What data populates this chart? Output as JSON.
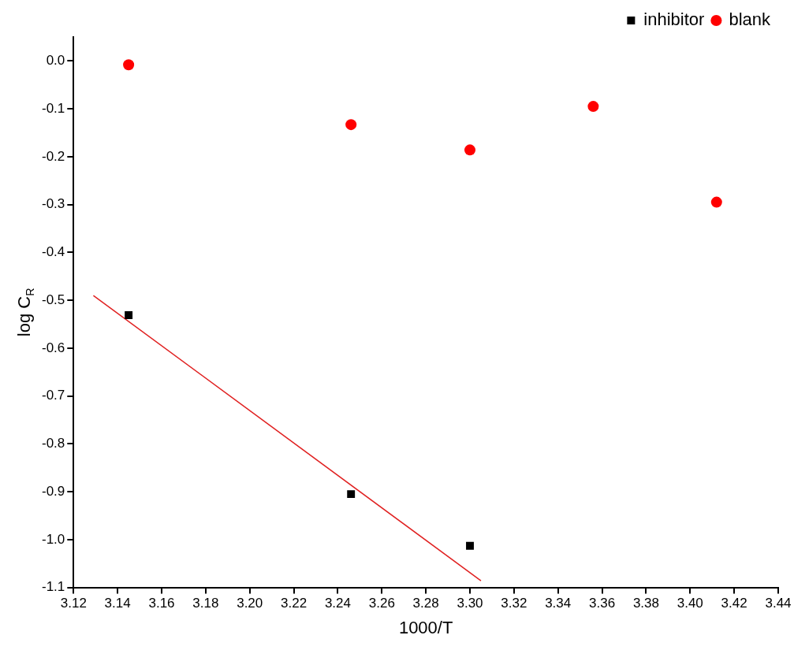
{
  "chart_data": {
    "type": "scatter",
    "xlabel": "1000/T",
    "ylabel": "log C$_{R}$",
    "xlim": [
      3.12,
      3.44
    ],
    "ylim": [
      -1.1,
      0.05
    ],
    "xticks": [
      {
        "value": 3.12,
        "label": "3.12"
      },
      {
        "value": 3.14,
        "label": "3.14"
      },
      {
        "value": 3.16,
        "label": "3.16"
      },
      {
        "value": 3.18,
        "label": "3.18"
      },
      {
        "value": 3.2,
        "label": "3.20"
      },
      {
        "value": 3.22,
        "label": "3.22"
      },
      {
        "value": 3.24,
        "label": "3.24"
      },
      {
        "value": 3.26,
        "label": "3.26"
      },
      {
        "value": 3.28,
        "label": "3.28"
      },
      {
        "value": 3.3,
        "label": "3.30"
      },
      {
        "value": 3.32,
        "label": "3.32"
      },
      {
        "value": 3.34,
        "label": "3.34"
      },
      {
        "value": 3.36,
        "label": "3.36"
      },
      {
        "value": 3.38,
        "label": "3.38"
      },
      {
        "value": 3.4,
        "label": "3.40"
      },
      {
        "value": 3.42,
        "label": "3.42"
      },
      {
        "value": 3.44,
        "label": "3.44"
      }
    ],
    "yticks": [
      {
        "value": 0,
        "label": "0.0"
      },
      {
        "value": -0.1,
        "label": "-0.1"
      },
      {
        "value": -0.2,
        "label": "-0.2"
      },
      {
        "value": -0.3,
        "label": "-0.3"
      },
      {
        "value": -0.4,
        "label": "-0.4"
      },
      {
        "value": -0.5,
        "label": "-0.5"
      },
      {
        "value": -0.6,
        "label": "-0.6"
      },
      {
        "value": -0.7,
        "label": "-0.7"
      },
      {
        "value": -0.8,
        "label": "-0.8"
      },
      {
        "value": -0.9,
        "label": "-0.9"
      },
      {
        "value": -1.0,
        "label": "-1.0"
      },
      {
        "value": -1.1,
        "label": "-1.1"
      }
    ],
    "grid": false,
    "legend": "top right",
    "series": [
      {
        "name": "inhibitor",
        "color": "#000000",
        "marker": "square",
        "x": [
          3.145,
          3.246,
          3.3
        ],
        "values": [
          -0.531,
          -0.905,
          -1.013
        ]
      },
      {
        "name": "blank",
        "color": "#ff0000",
        "marker": "circle",
        "x": [
          3.145,
          3.246,
          3.3,
          3.356,
          3.412
        ],
        "values": [
          -0.008,
          -0.133,
          -0.186,
          -0.095,
          -0.295
        ]
      },
      {
        "type": "line",
        "color": "#e02020",
        "marker": "none",
        "x": [
          3.129,
          3.305
        ],
        "values": [
          -0.49,
          -1.086
        ]
      }
    ]
  }
}
